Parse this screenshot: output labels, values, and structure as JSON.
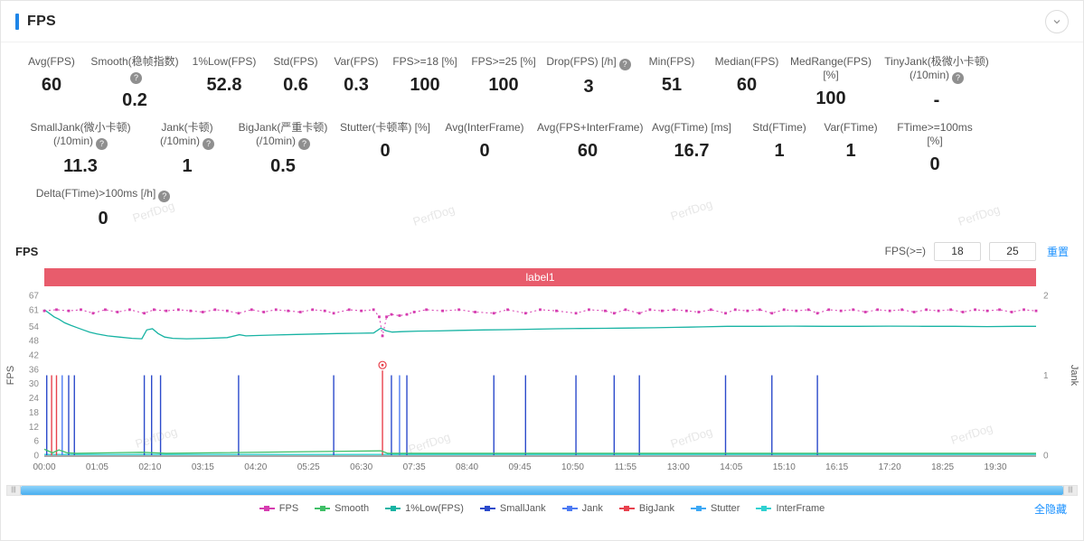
{
  "header": {
    "title": "FPS"
  },
  "icons": {
    "help": "?",
    "collapse": "chevron-down",
    "scroll_grip": "|||"
  },
  "stats": {
    "rows": [
      [
        {
          "label": "Avg(FPS)",
          "value": "60"
        },
        {
          "label": "Smooth(稳帧指数)",
          "value": "0.2",
          "help": true
        },
        {
          "label": "1%Low(FPS)",
          "value": "52.8"
        },
        {
          "label": "Std(FPS)",
          "value": "0.6"
        },
        {
          "label": "Var(FPS)",
          "value": "0.3"
        },
        {
          "label": "FPS>=18 [%]",
          "value": "100"
        },
        {
          "label": "FPS>=25 [%]",
          "value": "100"
        },
        {
          "label": "Drop(FPS) [/h]",
          "value": "3",
          "help": true
        },
        {
          "label": "Min(FPS)",
          "value": "51"
        },
        {
          "label": "Median(FPS)",
          "value": "60"
        },
        {
          "label": "MedRange(FPS)[%]",
          "value": "100"
        },
        {
          "label": "TinyJank(极微小卡顿)",
          "label2": "(/10min)",
          "value": "-",
          "help": true
        }
      ],
      [
        {
          "label": "SmallJank(微小卡顿)",
          "label2": "(/10min)",
          "value": "11.3",
          "help": true
        },
        {
          "label": "Jank(卡顿)",
          "label2": "(/10min)",
          "value": "1",
          "help": true
        },
        {
          "label": "BigJank(严重卡顿)",
          "label2": "(/10min)",
          "value": "0.5",
          "help": true
        },
        {
          "label": "Stutter(卡顿率) [%]",
          "value": "0"
        },
        {
          "label": "Avg(InterFrame)",
          "value": "0"
        },
        {
          "label": "Avg(FPS+InterFrame)",
          "value": "60"
        },
        {
          "label": "Avg(FTime) [ms]",
          "value": "16.7"
        },
        {
          "label": "Std(FTime)",
          "value": "1"
        },
        {
          "label": "Var(FTime)",
          "value": "1"
        },
        {
          "label": "FTime>=100ms [%]",
          "value": "0"
        }
      ],
      [
        {
          "label": "Delta(FTime)>100ms [/h]",
          "value": "0",
          "help": true
        }
      ]
    ]
  },
  "chart_section": {
    "title": "FPS",
    "threshold_label": "FPS(>=)",
    "threshold1": "18",
    "threshold2": "25",
    "reset_label": "重置",
    "hide_all_label": "全隐藏",
    "watermark_text": "PerfDog"
  },
  "chart_data": {
    "type": "line",
    "title": "label1",
    "banner_color": "#e85c6c",
    "x_max": 1220,
    "x_ticks_seconds": [
      0,
      65,
      130,
      195,
      260,
      325,
      390,
      455,
      520,
      585,
      650,
      715,
      780,
      845,
      910,
      975,
      1040,
      1105,
      1170
    ],
    "x_tick_labels": [
      "00:00",
      "01:05",
      "02:10",
      "03:15",
      "04:20",
      "05:25",
      "06:30",
      "07:35",
      "08:40",
      "09:45",
      "10:50",
      "11:55",
      "13:00",
      "14:05",
      "15:10",
      "16:15",
      "17:20",
      "18:25",
      "19:30"
    ],
    "y_left": {
      "label": "FPS",
      "ticks": [
        0,
        6,
        12,
        18,
        24,
        30,
        36,
        42,
        48,
        54,
        61,
        67
      ],
      "max": 67
    },
    "y_right": {
      "label": "Jank",
      "ticks": [
        0,
        1,
        2
      ],
      "max": 2
    },
    "series": [
      {
        "name": "FPS",
        "color": "#d63cb0",
        "axis": "left",
        "style": "dotted-marker",
        "points": [
          [
            0,
            60.5
          ],
          [
            15,
            61
          ],
          [
            30,
            60.5
          ],
          [
            45,
            61
          ],
          [
            60,
            59.5
          ],
          [
            75,
            61
          ],
          [
            90,
            60
          ],
          [
            105,
            61
          ],
          [
            123,
            59.5
          ],
          [
            135,
            61
          ],
          [
            150,
            60.5
          ],
          [
            165,
            61
          ],
          [
            180,
            60.5
          ],
          [
            195,
            60
          ],
          [
            210,
            61
          ],
          [
            225,
            60.5
          ],
          [
            239,
            59.5
          ],
          [
            255,
            61
          ],
          [
            270,
            60
          ],
          [
            285,
            61
          ],
          [
            300,
            60.5
          ],
          [
            315,
            60
          ],
          [
            330,
            61
          ],
          [
            345,
            60.5
          ],
          [
            356,
            59.5
          ],
          [
            375,
            61
          ],
          [
            390,
            60.5
          ],
          [
            405,
            61
          ],
          [
            412,
            58
          ],
          [
            416,
            50
          ],
          [
            421,
            58
          ],
          [
            427,
            59
          ],
          [
            437,
            58.5
          ],
          [
            446,
            59
          ],
          [
            455,
            60
          ],
          [
            470,
            61
          ],
          [
            490,
            60.5
          ],
          [
            510,
            61
          ],
          [
            530,
            60
          ],
          [
            553,
            59.5
          ],
          [
            570,
            61
          ],
          [
            592,
            59.5
          ],
          [
            610,
            61
          ],
          [
            630,
            60.5
          ],
          [
            654,
            59.5
          ],
          [
            670,
            61
          ],
          [
            690,
            60.5
          ],
          [
            701,
            59.5
          ],
          [
            715,
            61
          ],
          [
            732,
            59.5
          ],
          [
            745,
            61
          ],
          [
            760,
            60.5
          ],
          [
            775,
            61
          ],
          [
            790,
            60.5
          ],
          [
            805,
            60
          ],
          [
            820,
            61
          ],
          [
            838,
            59.5
          ],
          [
            850,
            61
          ],
          [
            865,
            60.5
          ],
          [
            880,
            61
          ],
          [
            895,
            59.5
          ],
          [
            910,
            61
          ],
          [
            925,
            60.5
          ],
          [
            940,
            61
          ],
          [
            951,
            59.5
          ],
          [
            965,
            61
          ],
          [
            980,
            60.5
          ],
          [
            995,
            61
          ],
          [
            1010,
            60
          ],
          [
            1025,
            61
          ],
          [
            1040,
            60.5
          ],
          [
            1055,
            61
          ],
          [
            1070,
            60
          ],
          [
            1085,
            61
          ],
          [
            1100,
            60.5
          ],
          [
            1115,
            61
          ],
          [
            1130,
            60
          ],
          [
            1145,
            61
          ],
          [
            1160,
            60.5
          ],
          [
            1175,
            61
          ],
          [
            1190,
            60
          ],
          [
            1205,
            61
          ],
          [
            1220,
            60.5
          ]
        ]
      },
      {
        "name": "Smooth",
        "color": "#3fbf67",
        "axis": "left",
        "style": "line",
        "points": [
          [
            0,
            2.5
          ],
          [
            10,
            1
          ],
          [
            18,
            2.2
          ],
          [
            28,
            1
          ],
          [
            40,
            0.8
          ],
          [
            120,
            1.2
          ],
          [
            150,
            0.8
          ],
          [
            414,
            1.8
          ],
          [
            422,
            0.8
          ],
          [
            1220,
            0.8
          ]
        ]
      },
      {
        "name": "1%Low(FPS)",
        "color": "#17b3a3",
        "axis": "left",
        "style": "line",
        "points": [
          [
            0,
            61
          ],
          [
            6,
            59.5
          ],
          [
            12,
            58
          ],
          [
            18,
            57
          ],
          [
            25,
            55.5
          ],
          [
            32,
            54.5
          ],
          [
            40,
            53.5
          ],
          [
            48,
            52.5
          ],
          [
            56,
            51.5
          ],
          [
            65,
            50.8
          ],
          [
            78,
            50
          ],
          [
            92,
            49.5
          ],
          [
            108,
            49
          ],
          [
            120,
            48.8
          ],
          [
            126,
            52.5
          ],
          [
            133,
            53
          ],
          [
            140,
            51
          ],
          [
            148,
            49.5
          ],
          [
            158,
            49
          ],
          [
            175,
            48.8
          ],
          [
            200,
            49
          ],
          [
            225,
            49.3
          ],
          [
            240,
            50.5
          ],
          [
            248,
            50
          ],
          [
            265,
            50.2
          ],
          [
            285,
            50.4
          ],
          [
            310,
            50.6
          ],
          [
            335,
            50.8
          ],
          [
            360,
            51
          ],
          [
            385,
            51.1
          ],
          [
            405,
            51.2
          ],
          [
            414,
            53.3
          ],
          [
            420,
            52.2
          ],
          [
            428,
            51.6
          ],
          [
            440,
            51.8
          ],
          [
            460,
            52
          ],
          [
            485,
            52.1
          ],
          [
            510,
            52.3
          ],
          [
            540,
            52.5
          ],
          [
            570,
            52.6
          ],
          [
            600,
            52.8
          ],
          [
            630,
            53
          ],
          [
            660,
            53.1
          ],
          [
            690,
            53.2
          ],
          [
            720,
            53.3
          ],
          [
            750,
            53.4
          ],
          [
            780,
            53.6
          ],
          [
            810,
            53.8
          ],
          [
            840,
            54
          ],
          [
            880,
            54
          ],
          [
            920,
            54.1
          ],
          [
            960,
            54
          ],
          [
            1000,
            54
          ],
          [
            1040,
            54.1
          ],
          [
            1080,
            54
          ],
          [
            1120,
            54
          ],
          [
            1160,
            53.9
          ],
          [
            1195,
            54
          ],
          [
            1220,
            54
          ]
        ]
      },
      {
        "name": "SmallJank",
        "color": "#2b4acb",
        "axis": "right",
        "style": "impulse",
        "events": [
          [
            3,
            1
          ],
          [
            30,
            1
          ],
          [
            37,
            1
          ],
          [
            123,
            1
          ],
          [
            132,
            1
          ],
          [
            143,
            1
          ],
          [
            239,
            1
          ],
          [
            356,
            1
          ],
          [
            427,
            1
          ],
          [
            446,
            1
          ],
          [
            553,
            1
          ],
          [
            592,
            1
          ],
          [
            654,
            1
          ],
          [
            701,
            1
          ],
          [
            732,
            1
          ],
          [
            838,
            1
          ],
          [
            895,
            1
          ],
          [
            951,
            1
          ]
        ]
      },
      {
        "name": "Jank",
        "color": "#4d7bf3",
        "axis": "right",
        "style": "impulse",
        "events": [
          [
            22,
            1
          ],
          [
            437,
            1
          ]
        ]
      },
      {
        "name": "BigJank",
        "color": "#e8414d",
        "axis": "right",
        "style": "impulse-marker",
        "events": [
          [
            9,
            1
          ],
          [
            15,
            1
          ],
          [
            416,
            1.06
          ]
        ]
      },
      {
        "name": "Stutter",
        "color": "#3da8f5",
        "axis": "right",
        "style": "impulse",
        "events": []
      },
      {
        "name": "InterFrame",
        "color": "#2fd1d1",
        "axis": "left",
        "style": "line",
        "points": [
          [
            0,
            0.3
          ],
          [
            1220,
            0.3
          ]
        ]
      }
    ]
  }
}
